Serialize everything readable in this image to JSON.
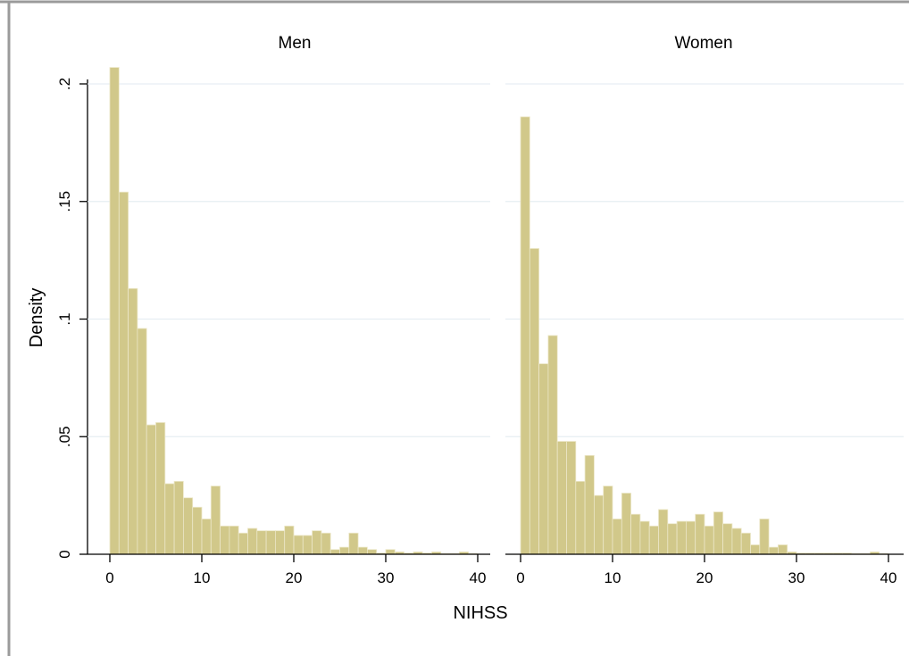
{
  "chart_data": {
    "type": "bar",
    "ylabel": "Density",
    "xlabel": "NIHSS",
    "ylim": [
      0,
      0.2
    ],
    "y_ticks": [
      {
        "value": 0,
        "label": "0"
      },
      {
        "value": 0.05,
        "label": ".05"
      },
      {
        "value": 0.1,
        "label": ".1"
      },
      {
        "value": 0.15,
        "label": ".15"
      },
      {
        "value": 0.2,
        "label": ".2"
      }
    ],
    "x_ticks": [
      0,
      10,
      20,
      30,
      40
    ],
    "xlim": [
      0,
      40
    ],
    "bin_width": 1,
    "grid": true,
    "colors": {
      "bar_fill": "#d1c88a",
      "bar_edge": "#ece7c8",
      "grid": "#e6eef3",
      "frame": "#9b9b9b"
    },
    "panels": [
      {
        "title": "Men",
        "bin_starts": [
          0,
          1,
          2,
          3,
          4,
          5,
          6,
          7,
          8,
          9,
          10,
          11,
          12,
          13,
          14,
          15,
          16,
          17,
          18,
          19,
          20,
          21,
          22,
          23,
          24,
          25,
          26,
          27,
          28,
          29,
          30,
          31,
          32,
          33,
          34,
          35,
          36,
          37,
          38,
          39
        ],
        "values": [
          0.207,
          0.154,
          0.113,
          0.096,
          0.055,
          0.056,
          0.03,
          0.031,
          0.024,
          0.02,
          0.015,
          0.029,
          0.012,
          0.012,
          0.009,
          0.011,
          0.01,
          0.01,
          0.01,
          0.012,
          0.008,
          0.008,
          0.01,
          0.009,
          0.002,
          0.003,
          0.009,
          0.003,
          0.002,
          0.0005,
          0.002,
          0.001,
          0.0005,
          0.001,
          0.0005,
          0.001,
          0.0003,
          0.0003,
          0.001,
          0.0003
        ]
      },
      {
        "title": "Women",
        "bin_starts": [
          0,
          1,
          2,
          3,
          4,
          5,
          6,
          7,
          8,
          9,
          10,
          11,
          12,
          13,
          14,
          15,
          16,
          17,
          18,
          19,
          20,
          21,
          22,
          23,
          24,
          25,
          26,
          27,
          28,
          29,
          30,
          31,
          32,
          33,
          34,
          35,
          36,
          37,
          38,
          39
        ],
        "values": [
          0.186,
          0.13,
          0.081,
          0.093,
          0.048,
          0.048,
          0.031,
          0.042,
          0.025,
          0.029,
          0.015,
          0.026,
          0.017,
          0.014,
          0.012,
          0.019,
          0.013,
          0.014,
          0.014,
          0.017,
          0.012,
          0.018,
          0.013,
          0.011,
          0.009,
          0.004,
          0.015,
          0.003,
          0.004,
          0.001,
          0.0005,
          0.0005,
          0.0005,
          0.0005,
          0.0005,
          0.0005,
          0.0003,
          0.0003,
          0.001,
          0.0003
        ]
      }
    ]
  }
}
